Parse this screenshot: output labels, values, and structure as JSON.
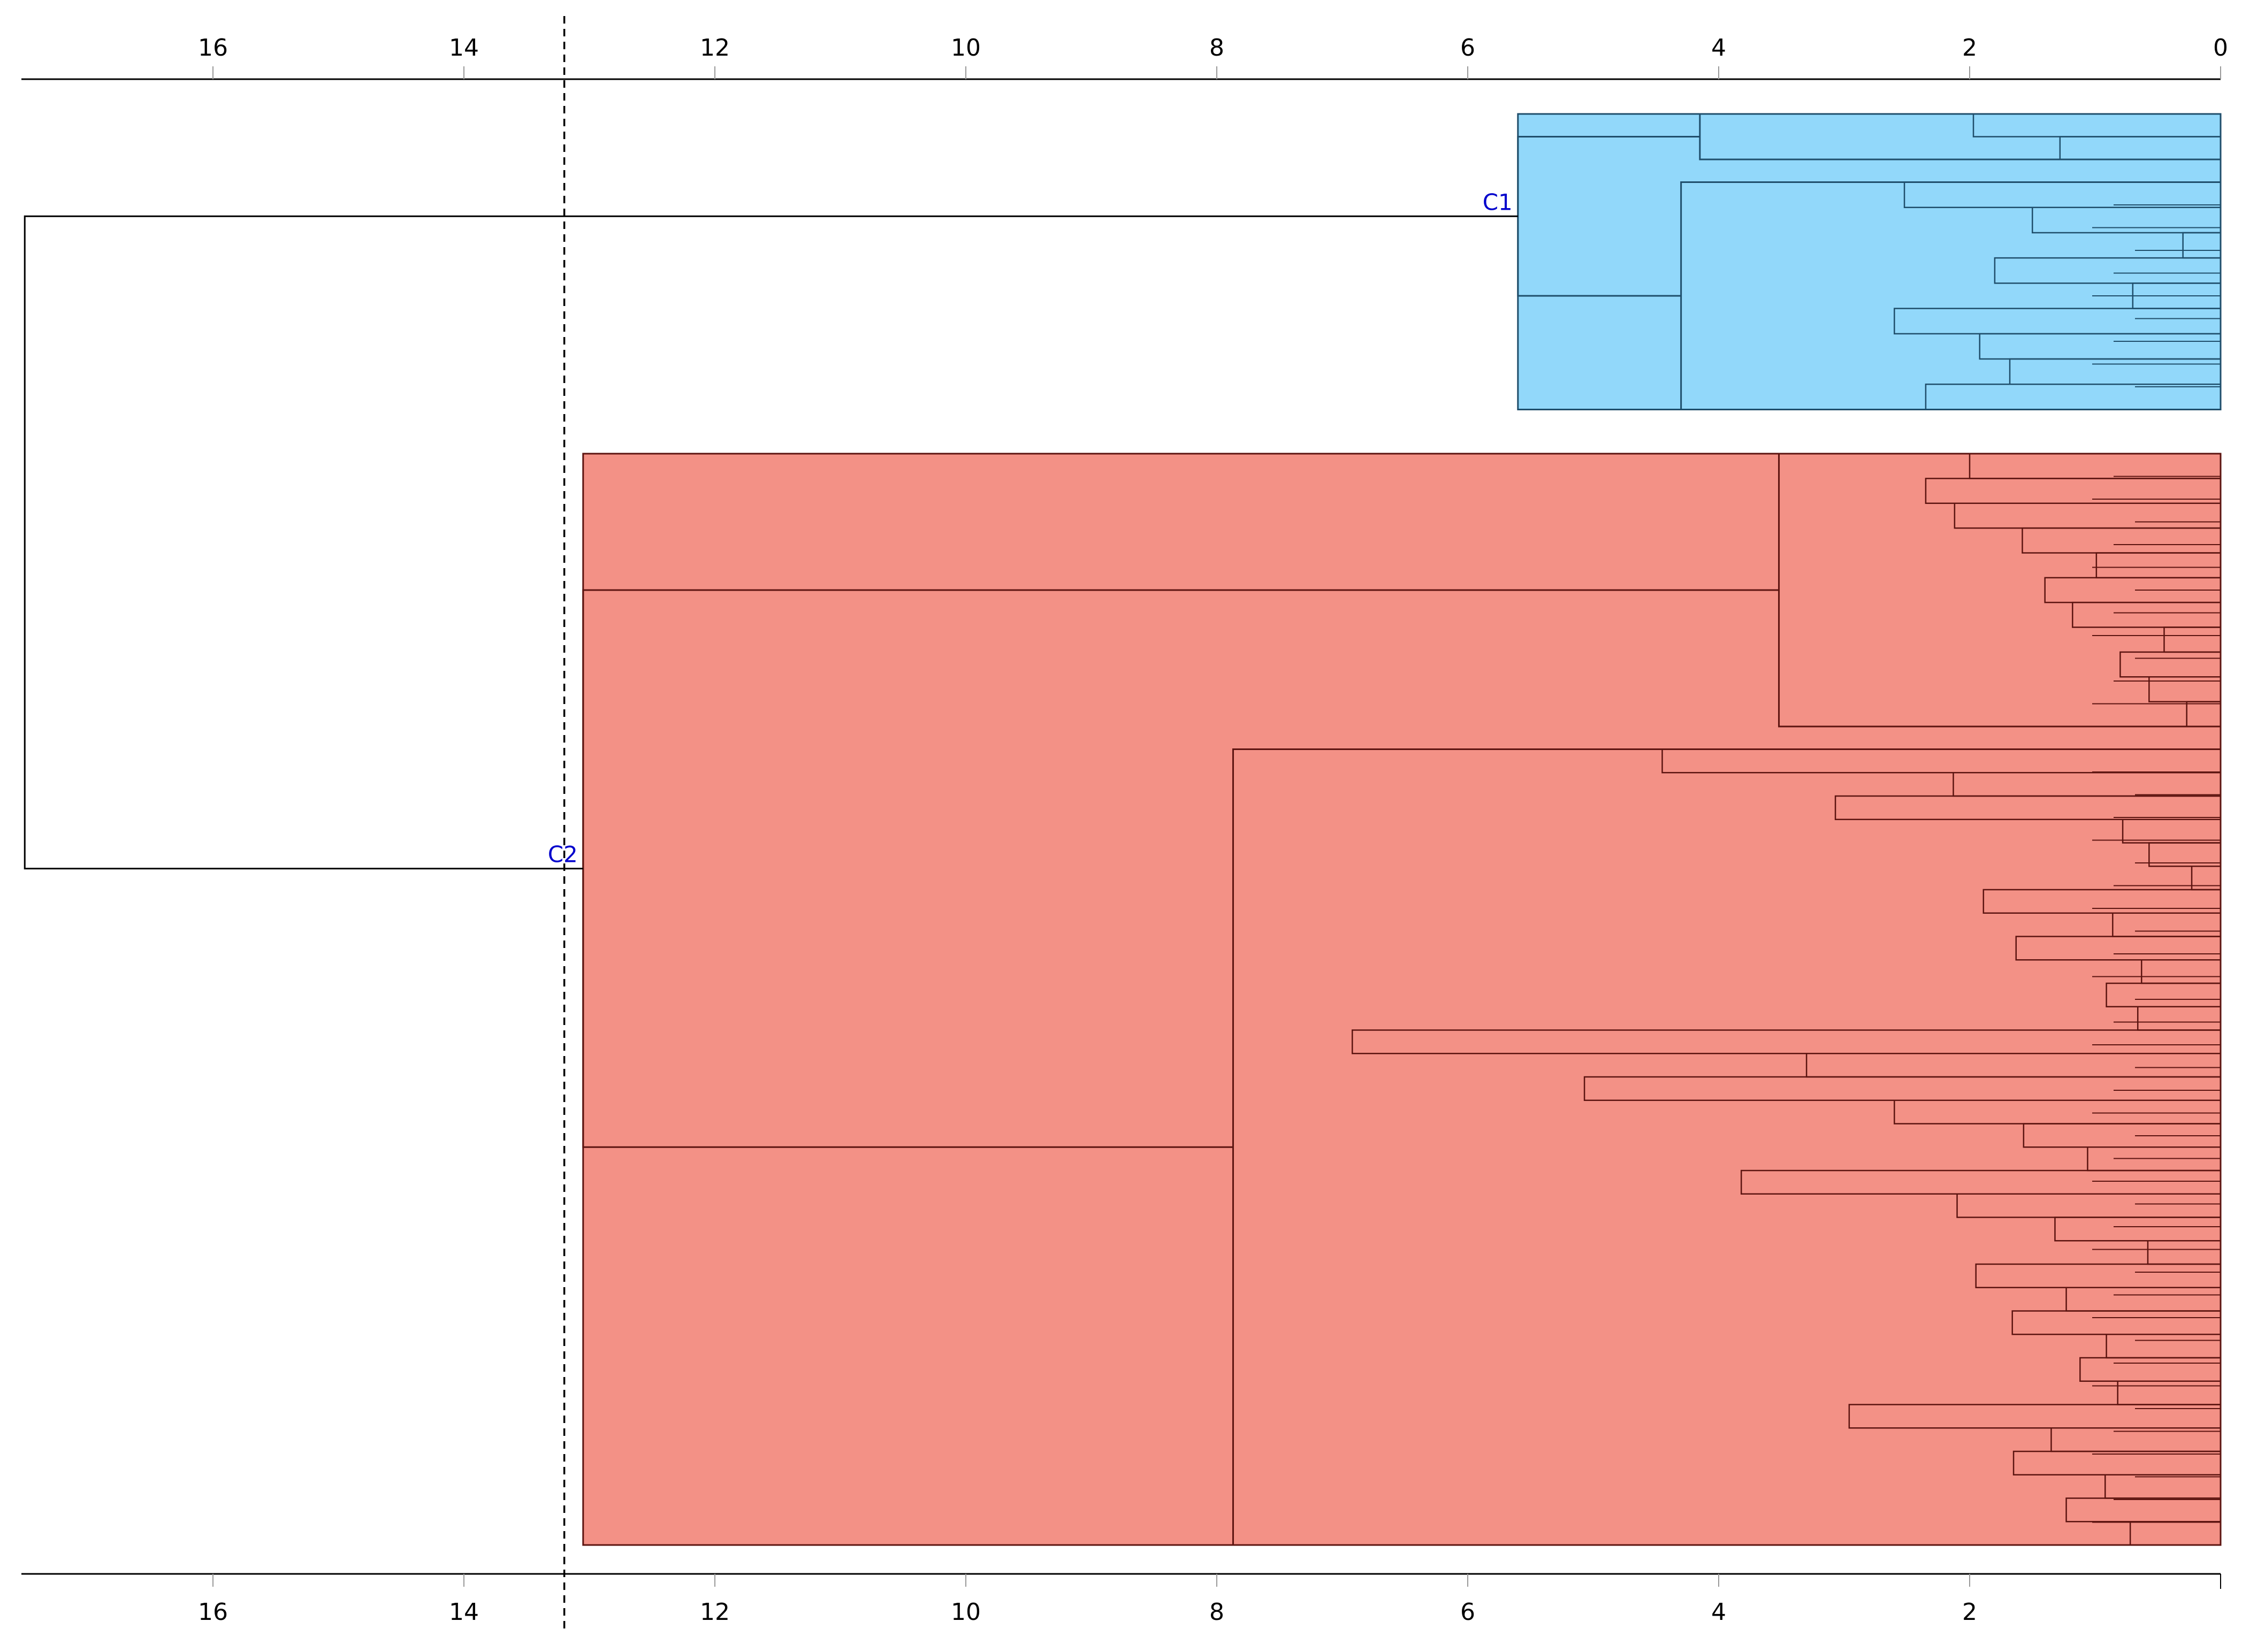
{
  "chart_data": {
    "type": "dendrogram",
    "title": "",
    "orientation": "horizontal, distance increases to the left",
    "xlabel": "",
    "ylabel": "",
    "x_axis_top_ticks": [
      "16",
      "14",
      "12",
      "10",
      "8",
      "6",
      "4",
      "2",
      "0"
    ],
    "x_axis_bottom_ticks": [
      "16",
      "14",
      "12",
      "10",
      "8",
      "6",
      "4",
      "2"
    ],
    "x_range": [
      17.5,
      0
    ],
    "cut_threshold": 13.2,
    "root_height": 17.5,
    "clusters": [
      {
        "name": "C1",
        "color": "#92D8FA",
        "outline_color": "#1F4E6B",
        "label_color": "#0000CC",
        "n_leaves": 14,
        "merge_height": 5.6,
        "subtrees": [
          {
            "height": 4.15,
            "merges": [
              1.97,
              1.28
            ]
          },
          {
            "height": 4.3,
            "merges": [
              2.52,
              1.5,
              0.3,
              1.8,
              0.7,
              2.6,
              1.92,
              1.68,
              2.35
            ]
          }
        ]
      },
      {
        "name": "C2",
        "color": "#F39186",
        "outline_color": "#5C1410",
        "label_color": "#0000CC",
        "n_leaves": 49,
        "merge_height": 13.05,
        "subtrees": [
          {
            "height": 3.52,
            "merges": [
              2.0,
              2.35,
              2.12,
              1.58,
              0.99,
              1.4,
              1.18,
              0.45,
              0.8,
              0.57,
              0.27
            ]
          },
          {
            "height": 7.87,
            "merges": [
              4.45,
              2.13,
              3.07,
              0.78,
              0.57,
              0.23,
              1.89,
              0.86,
              1.63,
              0.63,
              0.91,
              0.66,
              6.92,
              3.3,
              5.07,
              2.6,
              1.57,
              1.06,
              3.82,
              2.1,
              1.32,
              0.58,
              1.95,
              1.23,
              1.66,
              0.91,
              1.12,
              0.82,
              2.96,
              1.35,
              1.65,
              0.92,
              1.23,
              0.72
            ]
          }
        ]
      }
    ]
  }
}
